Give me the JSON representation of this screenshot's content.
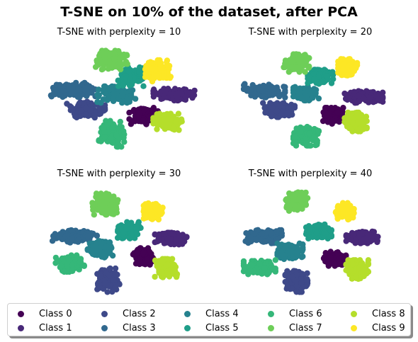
{
  "title": "T-SNE on 10% of the dataset, after PCA",
  "legend": [
    {
      "label": "Class 0",
      "color": "#440154"
    },
    {
      "label": "Class 1",
      "color": "#482878"
    },
    {
      "label": "Class 2",
      "color": "#3e4989"
    },
    {
      "label": "Class 3",
      "color": "#31688e"
    },
    {
      "label": "Class 4",
      "color": "#26828e"
    },
    {
      "label": "Class 5",
      "color": "#1f9e89"
    },
    {
      "label": "Class 6",
      "color": "#35b779"
    },
    {
      "label": "Class 7",
      "color": "#6ece58"
    },
    {
      "label": "Class 8",
      "color": "#b5de2b"
    },
    {
      "label": "Class 9",
      "color": "#fde725"
    }
  ],
  "chart_data": [
    {
      "type": "scatter",
      "title": "T-SNE with perplexity = 10",
      "axis_visible": false,
      "xlim": [
        -50,
        50
      ],
      "ylim": [
        -50,
        50
      ],
      "clusters": [
        {
          "class": "Class 0",
          "cx": 14,
          "cy": -13,
          "sx": 9,
          "sy": 7
        },
        {
          "class": "Class 1",
          "cx": 33,
          "cy": 5,
          "sx": 13,
          "sy": 5
        },
        {
          "class": "Class 2",
          "cx": -22,
          "cy": -8,
          "sx": 12,
          "sy": 7
        },
        {
          "class": "Class 3",
          "cx": -30,
          "cy": 9,
          "sx": 14,
          "sy": 6
        },
        {
          "class": "Class 4",
          "cx": -3,
          "cy": 5,
          "sx": 12,
          "sy": 7
        },
        {
          "class": "Class 5",
          "cx": 6,
          "cy": 20,
          "sx": 8,
          "sy": 8
        },
        {
          "class": "Class 6",
          "cx": -6,
          "cy": -28,
          "sx": 8,
          "sy": 11
        },
        {
          "class": "Class 7",
          "cx": -6,
          "cy": 34,
          "sx": 10,
          "sy": 8
        },
        {
          "class": "Class 8",
          "cx": 29,
          "cy": -18,
          "sx": 9,
          "sy": 7
        },
        {
          "class": "Class 9",
          "cx": 23,
          "cy": 25,
          "sx": 8,
          "sy": 9
        }
      ]
    },
    {
      "type": "scatter",
      "title": "T-SNE with perplexity = 20",
      "axis_visible": false,
      "xlim": [
        -50,
        50
      ],
      "ylim": [
        -50,
        50
      ],
      "clusters": [
        {
          "class": "Class 0",
          "cx": 13,
          "cy": -13,
          "sx": 7,
          "sy": 7
        },
        {
          "class": "Class 1",
          "cx": 32,
          "cy": 3,
          "sx": 12,
          "sy": 5
        },
        {
          "class": "Class 2",
          "cx": -21,
          "cy": -8,
          "sx": 10,
          "sy": 6
        },
        {
          "class": "Class 3",
          "cx": -30,
          "cy": 8,
          "sx": 13,
          "sy": 6
        },
        {
          "class": "Class 4",
          "cx": -4,
          "cy": 6,
          "sx": 8,
          "sy": 6
        },
        {
          "class": "Class 5",
          "cx": 5,
          "cy": 20,
          "sx": 8,
          "sy": 6
        },
        {
          "class": "Class 6",
          "cx": -4,
          "cy": -30,
          "sx": 8,
          "sy": 8
        },
        {
          "class": "Class 7",
          "cx": -10,
          "cy": 32,
          "sx": 8,
          "sy": 8
        },
        {
          "class": "Class 8",
          "cx": 27,
          "cy": -18,
          "sx": 7,
          "sy": 8
        },
        {
          "class": "Class 9",
          "cx": 22,
          "cy": 28,
          "sx": 6,
          "sy": 7
        }
      ]
    },
    {
      "type": "scatter",
      "title": "T-SNE with perplexity = 30",
      "axis_visible": false,
      "xlim": [
        -50,
        50
      ],
      "ylim": [
        -50,
        50
      ],
      "clusters": [
        {
          "class": "Class 0",
          "cx": 14,
          "cy": -12,
          "sx": 7,
          "sy": 7
        },
        {
          "class": "Class 1",
          "cx": 31,
          "cy": 3,
          "sx": 10,
          "sy": 5
        },
        {
          "class": "Class 2",
          "cx": -8,
          "cy": -32,
          "sx": 7,
          "sy": 10
        },
        {
          "class": "Class 3",
          "cx": -29,
          "cy": 5,
          "sx": 14,
          "sy": 6
        },
        {
          "class": "Class 4",
          "cx": -13,
          "cy": -6,
          "sx": 8,
          "sy": 7
        },
        {
          "class": "Class 5",
          "cx": 5,
          "cy": 10,
          "sx": 8,
          "sy": 7
        },
        {
          "class": "Class 6",
          "cx": -32,
          "cy": -18,
          "sx": 9,
          "sy": 7
        },
        {
          "class": "Class 7",
          "cx": -10,
          "cy": 32,
          "sx": 8,
          "sy": 9
        },
        {
          "class": "Class 8",
          "cx": 28,
          "cy": -22,
          "sx": 7,
          "sy": 8
        },
        {
          "class": "Class 9",
          "cx": 20,
          "cy": 26,
          "sx": 6,
          "sy": 7
        }
      ]
    },
    {
      "type": "scatter",
      "title": "T-SNE with perplexity = 40",
      "axis_visible": false,
      "xlim": [
        -50,
        50
      ],
      "ylim": [
        -50,
        50
      ],
      "clusters": [
        {
          "class": "Class 0",
          "cx": 14,
          "cy": -14,
          "sx": 7,
          "sy": 6
        },
        {
          "class": "Class 1",
          "cx": 31,
          "cy": 4,
          "sx": 10,
          "sy": 5
        },
        {
          "class": "Class 2",
          "cx": -10,
          "cy": -33,
          "sx": 7,
          "sy": 9
        },
        {
          "class": "Class 3",
          "cx": -31,
          "cy": 5,
          "sx": 12,
          "sy": 6
        },
        {
          "class": "Class 4",
          "cx": -14,
          "cy": -8,
          "sx": 8,
          "sy": 7
        },
        {
          "class": "Class 5",
          "cx": 4,
          "cy": 9,
          "sx": 8,
          "sy": 6
        },
        {
          "class": "Class 6",
          "cx": -33,
          "cy": -21,
          "sx": 10,
          "sy": 6
        },
        {
          "class": "Class 7",
          "cx": -10,
          "cy": 34,
          "sx": 7,
          "sy": 8
        },
        {
          "class": "Class 8",
          "cx": 28,
          "cy": -23,
          "sx": 7,
          "sy": 8
        },
        {
          "class": "Class 9",
          "cx": 20,
          "cy": 26,
          "sx": 6,
          "sy": 7
        }
      ]
    }
  ]
}
